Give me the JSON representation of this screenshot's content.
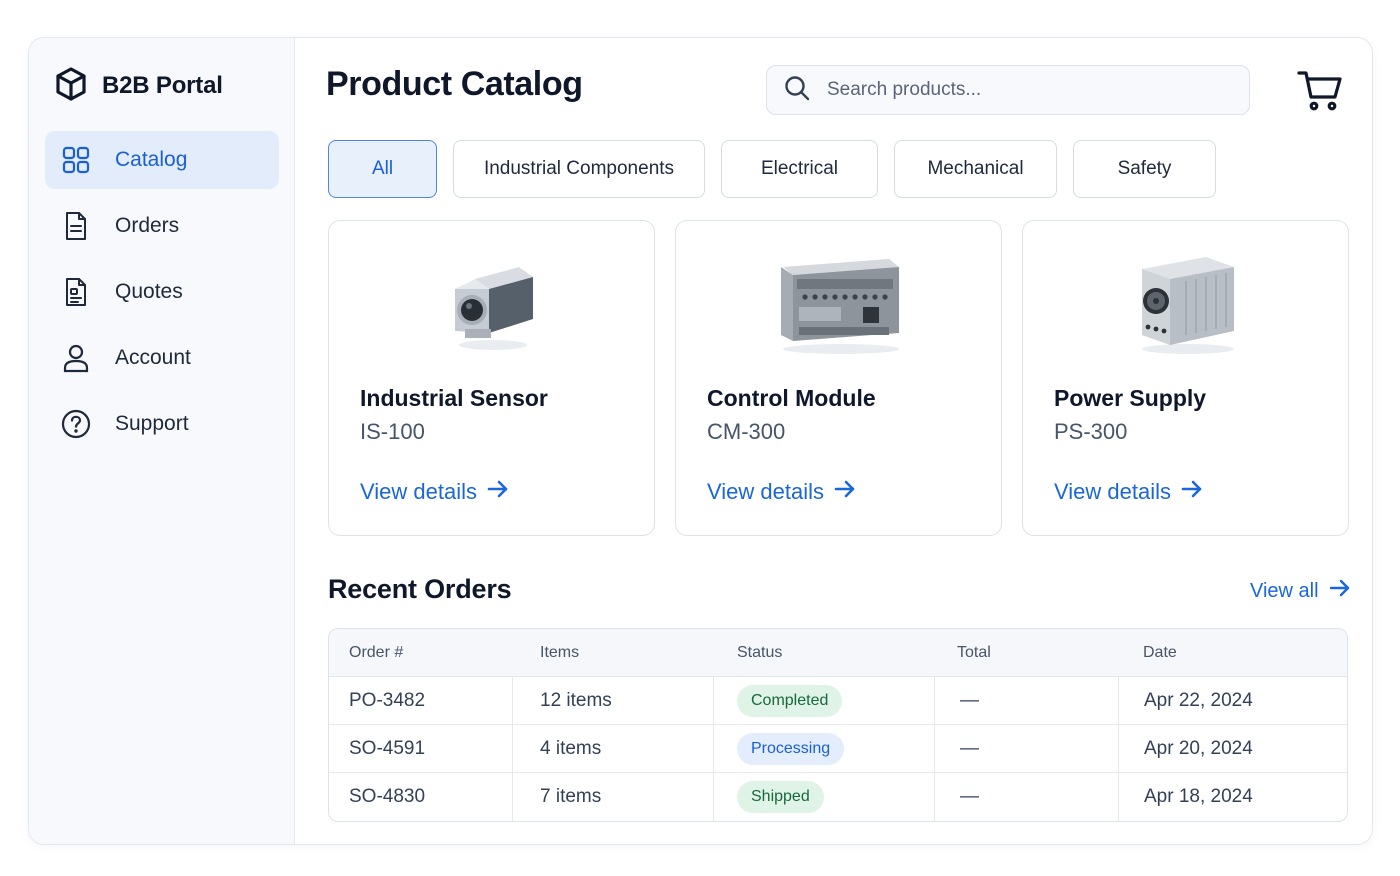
{
  "app": {
    "brand": "B2B Portal"
  },
  "sidebar": {
    "items": [
      {
        "label": "Catalog",
        "icon": "grid-icon",
        "active": true
      },
      {
        "label": "Orders",
        "icon": "document-icon",
        "active": false
      },
      {
        "label": "Quotes",
        "icon": "quote-document-icon",
        "active": false
      },
      {
        "label": "Account",
        "icon": "user-icon",
        "active": false
      },
      {
        "label": "Support",
        "icon": "help-circle-icon",
        "active": false
      }
    ]
  },
  "header": {
    "title": "Product Catalog",
    "search_placeholder": "Search products...",
    "cart_icon": "cart-icon"
  },
  "filters": [
    {
      "label": "All",
      "active": true
    },
    {
      "label": "Industrial Components",
      "active": false
    },
    {
      "label": "Electrical",
      "active": false
    },
    {
      "label": "Mechanical",
      "active": false
    },
    {
      "label": "Safety",
      "active": false
    }
  ],
  "products": [
    {
      "name": "Industrial Sensor",
      "sku": "IS-100",
      "link": "View details",
      "image": "sensor-image"
    },
    {
      "name": "Control Module",
      "sku": "CM-300",
      "link": "View details",
      "image": "control-module-image"
    },
    {
      "name": "Power Supply",
      "sku": "PS-300",
      "link": "View details",
      "image": "power-supply-image"
    }
  ],
  "recent_orders": {
    "title": "Recent Orders",
    "view_all": "View all",
    "columns": [
      "Order #",
      "Items",
      "Status",
      "Total",
      "Date"
    ],
    "rows": [
      {
        "order": "PO-3482",
        "items": "12 items",
        "status": "Completed",
        "total": "—",
        "date": "Apr 22, 2024"
      },
      {
        "order": "SO-4591",
        "items": "4 items",
        "status": "Processing",
        "total": "—",
        "date": "Apr 20, 2024"
      },
      {
        "order": "SO-4830",
        "items": "7 items",
        "status": "Shipped",
        "total": "—",
        "date": "Apr 18, 2024"
      }
    ]
  },
  "colors": {
    "accent": "#1a66db",
    "active_nav_bg": "#e2ecfb",
    "completed_bg": "#dff3e6",
    "processing_bg": "#e3edfb"
  }
}
